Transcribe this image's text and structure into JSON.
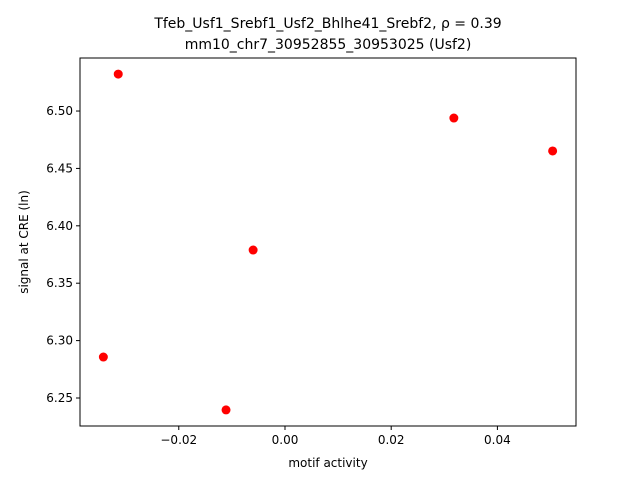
{
  "chart_data": {
    "type": "scatter",
    "title": "Tfeb_Usf1_Srebf1_Usf2_Bhlhe41_Srebf2, ρ = 0.39",
    "subtitle": "mm10_chr7_30952855_30953025 (Usf2)",
    "x_label": "motif activity",
    "y_label": "signal at CRE (ln)",
    "color": "#ff0000",
    "x": [
      -0.0314,
      0.0318,
      0.0504,
      -0.006,
      -0.0342,
      -0.0111
    ],
    "values": [
      6.5322,
      6.4939,
      6.4652,
      6.3789,
      6.2857,
      6.2396
    ],
    "xlim": [
      -0.0386,
      0.0548
    ],
    "ylim": [
      6.2256,
      6.5462
    ],
    "xticks": [
      {
        "value": -0.02,
        "label": "−0.02"
      },
      {
        "value": 0,
        "label": "0.00"
      },
      0.02,
      0.04
    ],
    "yticks": [
      6.25,
      {
        "value": 6.3,
        "label": "6.30"
      },
      6.35,
      {
        "value": 6.4,
        "label": "6.40"
      },
      6.45,
      {
        "value": 6.5,
        "label": "6.50"
      }
    ],
    "grid": false
  }
}
